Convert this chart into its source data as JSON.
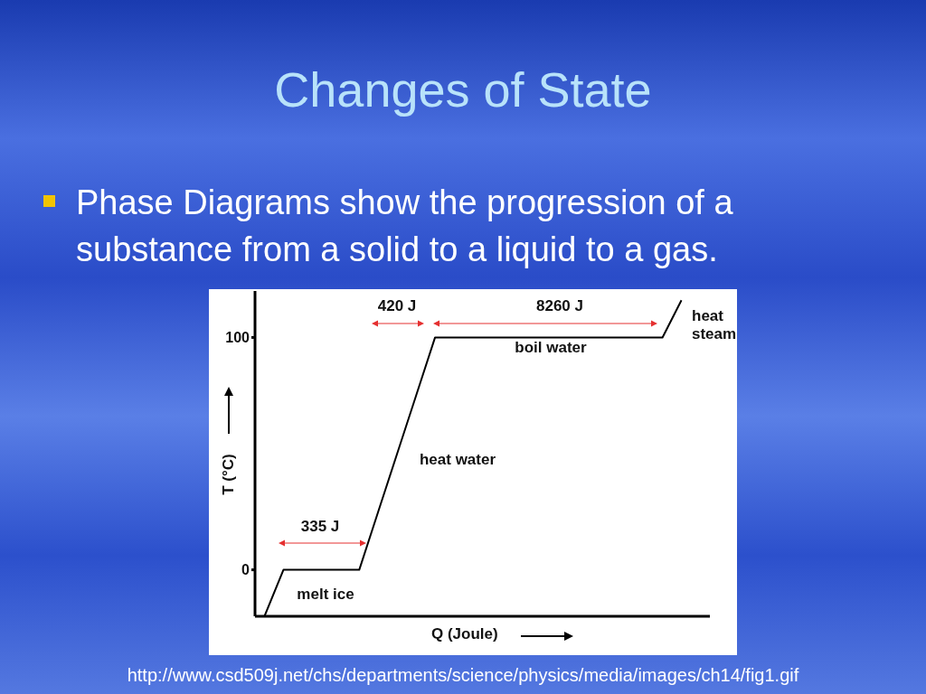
{
  "chart_data": {
    "type": "line",
    "title": "Changes of State",
    "subtitle": "Phase Diagrams show the progression of a substance from a solid to a liquid to a gas.",
    "xlabel": "Q (Joule)",
    "ylabel": "T (°C)",
    "categories": [
      null,
      null,
      null,
      null,
      null,
      null,
      null,
      null,
      null,
      null,
      null,
      null,
      null,
      null,
      null,
      null,
      null,
      null,
      null,
      null,
      null,
      null,
      null,
      null
    ],
    "series": [
      {
        "color": "#000000",
        "values": [
          -20,
          0,
          0,
          0,
          0,
          0,
          25,
          50,
          75,
          100,
          100,
          100,
          100,
          100,
          100,
          100,
          100,
          100,
          100,
          100,
          100,
          100,
          116,
          null
        ]
      }
    ],
    "ylim": [
      -20,
      120
    ],
    "yticks": [
      0,
      100
    ],
    "tick_labels": "y",
    "marker": "none",
    "line_style": "solid",
    "annotations": [
      "335 J",
      "420 J",
      "8260 J",
      "melt ice",
      "heat water",
      "boil water",
      "heat steam",
      "http://www.csd509j.net/chs/departments/science/physics/media/images/ch14/fig1.gif"
    ]
  }
}
